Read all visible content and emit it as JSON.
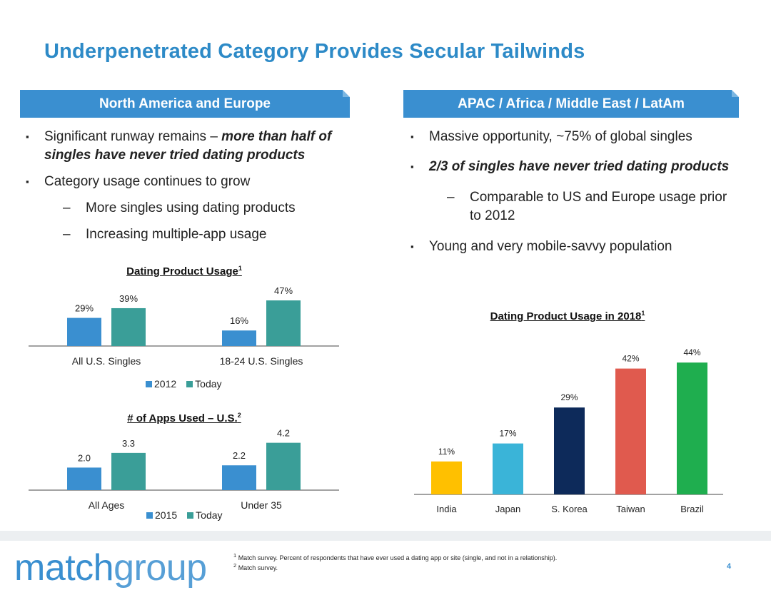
{
  "title": "Underpenetrated Category Provides Secular Tailwinds",
  "left": {
    "header": "North America and Europe",
    "bullet1_a": "Significant runway remains – ",
    "bullet1_b": "more than half of",
    "bullet1_c": "singles have never tried dating products",
    "bullet2": "Category usage continues to grow",
    "sub1": "More singles using dating products",
    "sub2": "Increasing multiple-app usage"
  },
  "right": {
    "header": "APAC / Africa / Middle East / LatAm",
    "bullet1": "Massive opportunity, ~75% of global singles",
    "bullet2": "2/3 of singles have never tried dating products",
    "sub1_a": "Comparable to US and Europe usage prior",
    "sub1_b": "to 2012",
    "bullet3": "Young and very mobile-savvy population"
  },
  "marks": {
    "square": "▪",
    "dash": "–"
  },
  "colors": {
    "blue": "#3a8fd0",
    "teal": "#3a9e98",
    "india": "#ffc000",
    "japan": "#3ab4d8",
    "skorea": "#0d2a5a",
    "taiwan": "#e05a4e",
    "brazil": "#1fae4f"
  },
  "chart_data": [
    {
      "type": "bar",
      "title": "Dating Product Usage",
      "title_sup": "1",
      "categories": [
        "All U.S. Singles",
        "18-24 U.S. Singles"
      ],
      "series": [
        {
          "name": "2012",
          "values": [
            29,
            16
          ],
          "labels": [
            "29%",
            "16%"
          ]
        },
        {
          "name": "Today",
          "values": [
            39,
            47
          ],
          "labels": [
            "39%",
            "47%"
          ]
        }
      ],
      "legend": "bottom"
    },
    {
      "type": "bar",
      "title": "# of Apps Used – U.S.",
      "title_sup": "2",
      "categories": [
        "All Ages",
        "Under 35"
      ],
      "series": [
        {
          "name": "2015",
          "values": [
            2.0,
            2.2
          ],
          "labels": [
            "2.0",
            "2.2"
          ]
        },
        {
          "name": "Today",
          "values": [
            3.3,
            4.2
          ],
          "labels": [
            "3.3",
            "4.2"
          ]
        }
      ],
      "legend": "bottom"
    },
    {
      "type": "bar",
      "title": "Dating Product Usage in 2018",
      "title_sup": "1",
      "categories": [
        "India",
        "Japan",
        "S. Korea",
        "Taiwan",
        "Brazil"
      ],
      "values": [
        11,
        17,
        29,
        42,
        44
      ],
      "labels": [
        "11%",
        "17%",
        "29%",
        "42%",
        "44%"
      ]
    }
  ],
  "footer": {
    "logo_a": "match",
    "logo_b": "group",
    "fn1_sup": "1",
    "fn1": "Match survey. Percent of respondents that have ever used a dating app or site (single, and not in a relationship).",
    "fn2_sup": "2",
    "fn2": "Match survey.",
    "page": "4"
  }
}
